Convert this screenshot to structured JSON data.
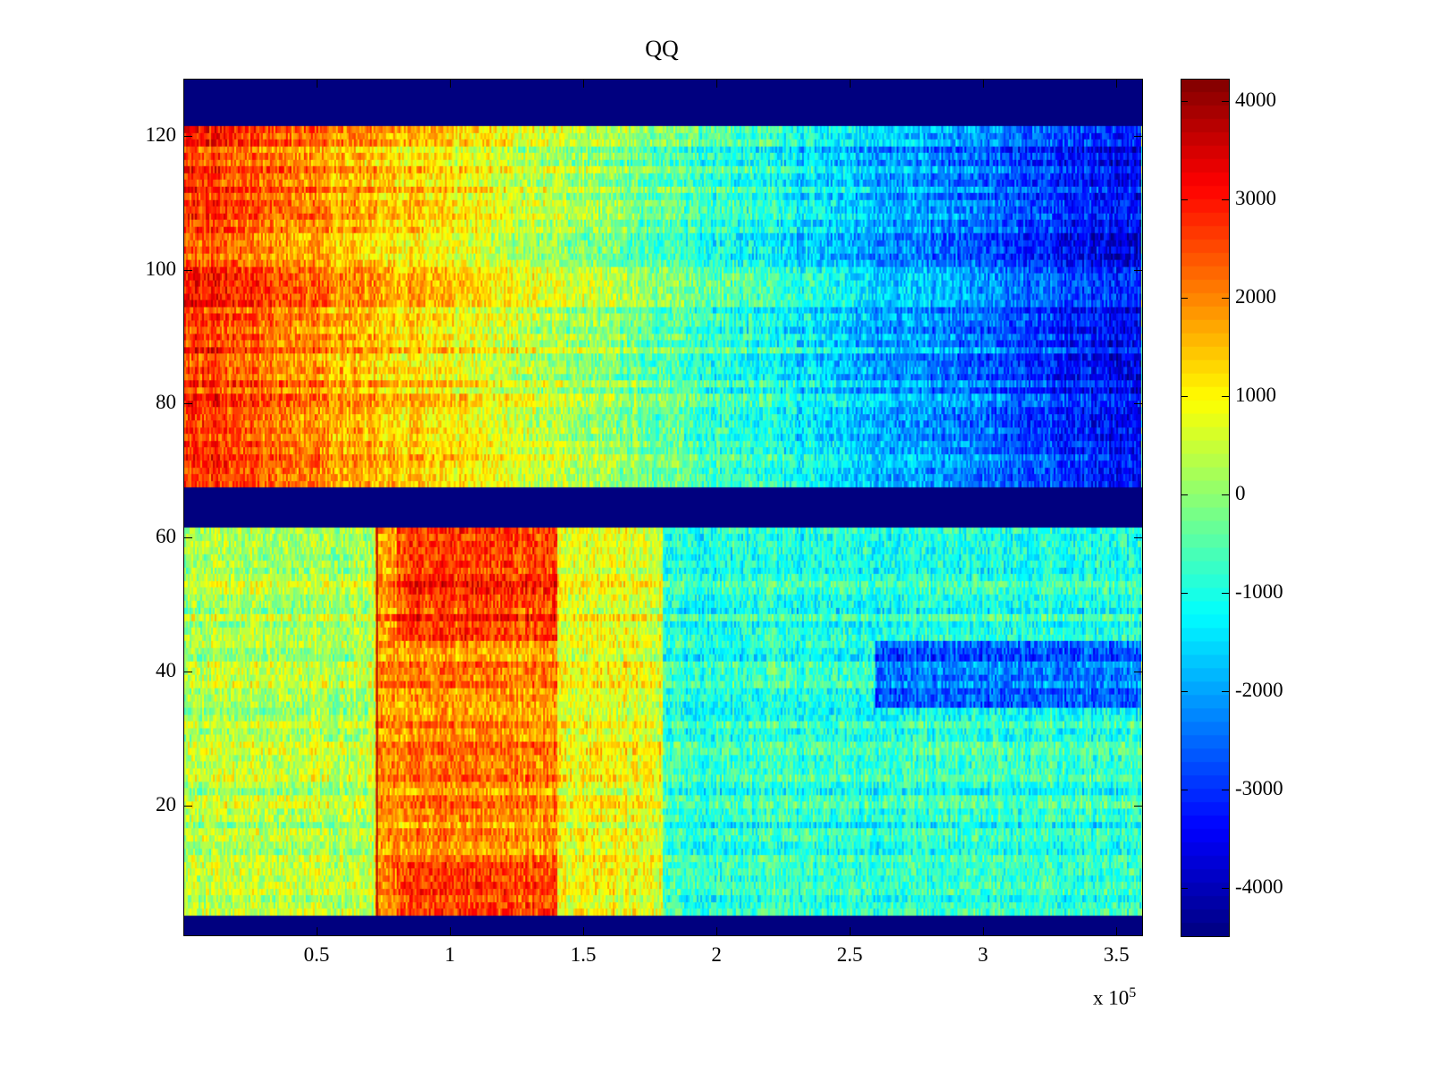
{
  "chart_data": {
    "type": "heatmap",
    "title": "QQ",
    "xlabel": "",
    "ylabel": "",
    "x_multiplier_label": "x 10",
    "x_multiplier_exponent": "5",
    "xlim": [
      0,
      360000
    ],
    "ylim": [
      0.5,
      128.5
    ],
    "clim": [
      -4490,
      4230
    ],
    "colormap": "jet",
    "xticks": [
      50000,
      100000,
      150000,
      200000,
      250000,
      300000,
      350000
    ],
    "xtick_labels": [
      "0.5",
      "1",
      "1.5",
      "2",
      "2.5",
      "3",
      "3.5"
    ],
    "yticks": [
      20,
      40,
      60,
      80,
      100,
      120
    ],
    "ytick_labels": [
      "20",
      "40",
      "60",
      "80",
      "100",
      "120"
    ],
    "colorbar_ticks": [
      4000,
      3000,
      2000,
      1000,
      0,
      -1000,
      -2000,
      -3000,
      -4000
    ],
    "colorbar_tick_labels": [
      "4000",
      "3000",
      "2000",
      "1000",
      "0",
      "-1000",
      "-2000",
      "-3000",
      "-4000"
    ],
    "empty_row_ranges_min_value": [
      [
        122,
        128
      ],
      [
        62,
        67
      ],
      [
        1,
        3
      ]
    ],
    "approximate_regions": [
      {
        "rows": [
          68,
          121
        ],
        "x_range": [
          0,
          360000
        ],
        "value_start": 2800,
        "value_end": -3500,
        "note_profile": "linear"
      },
      {
        "rows": [
          4,
          61
        ],
        "x_range": [
          0,
          72000
        ],
        "value": 300
      },
      {
        "rows": [
          4,
          61
        ],
        "x_range": [
          72000,
          140000
        ],
        "value": 1900
      },
      {
        "rows": [
          45,
          61
        ],
        "x_range": [
          80000,
          140000
        ],
        "value": 2700
      },
      {
        "rows": [
          4,
          11
        ],
        "x_range": [
          80000,
          140000
        ],
        "value": 2500
      },
      {
        "rows": [
          4,
          61
        ],
        "x_range": [
          140000,
          180000
        ],
        "value": 800
      },
      {
        "rows": [
          4,
          61
        ],
        "x_range": [
          180000,
          360000
        ],
        "value": -900
      },
      {
        "rows": [
          35,
          44
        ],
        "x_range": [
          260000,
          360000
        ],
        "value": -2500
      }
    ]
  }
}
